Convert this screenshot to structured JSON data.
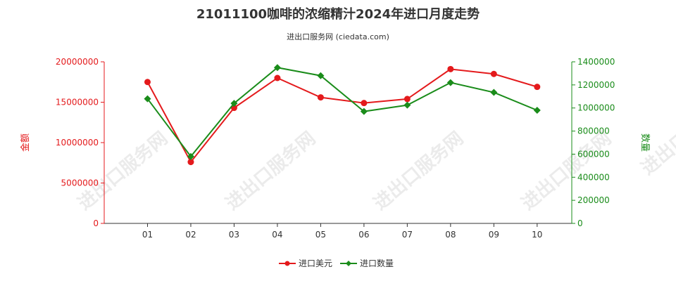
{
  "chart_data": {
    "type": "line",
    "title": "21011100咖啡的浓缩精汁2024年进口月度走势",
    "subtitle": "进出口服务网 (ciedata.com)",
    "watermark": "进出口服务网",
    "categories": [
      "01",
      "02",
      "03",
      "04",
      "05",
      "06",
      "07",
      "08",
      "09",
      "10"
    ],
    "y_left": {
      "label": "金额",
      "range": [
        0,
        20000000
      ],
      "ticks": [
        "0",
        "5000000",
        "10000000",
        "15000000",
        "20000000"
      ],
      "color": "#e41a1c"
    },
    "y_right": {
      "label": "数量",
      "range": [
        0,
        1400000
      ],
      "ticks": [
        "0",
        "200000",
        "400000",
        "600000",
        "800000",
        "1000000",
        "1200000",
        "1400000"
      ],
      "color": "#1a8c1a"
    },
    "series": [
      {
        "name": "进口美元",
        "axis": "left",
        "color": "#e41a1c",
        "values": [
          17500000,
          7600000,
          14300000,
          18000000,
          15600000,
          14900000,
          15400000,
          19100000,
          18500000,
          16900000
        ]
      },
      {
        "name": "进口数量",
        "axis": "right",
        "color": "#1a8c1a",
        "values": [
          1080000,
          580000,
          1040000,
          1350000,
          1280000,
          970000,
          1025000,
          1220000,
          1135000,
          980000
        ]
      }
    ],
    "legend_position": "bottom-center",
    "grid": false
  }
}
